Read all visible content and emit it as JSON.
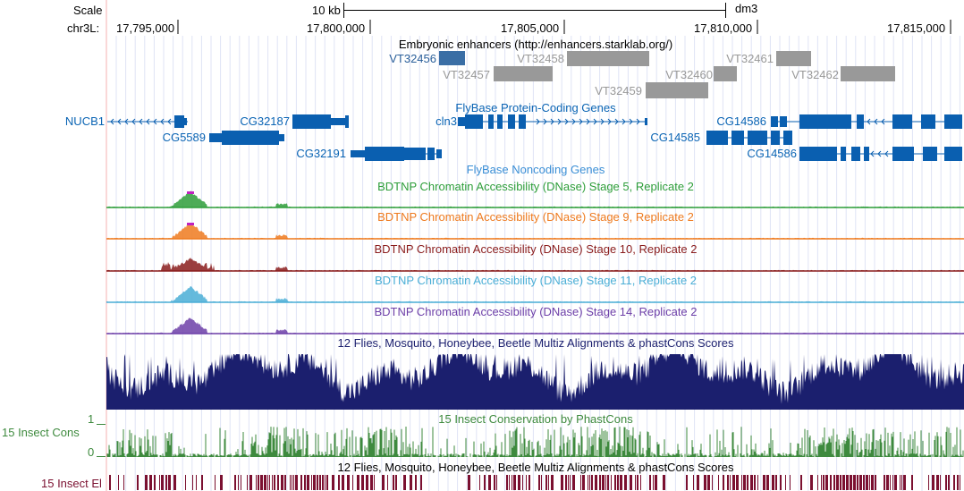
{
  "ruler": {
    "scale_label": "Scale",
    "scale_bar_label": "10 kb",
    "assembly": "dm3",
    "chrom_label": "chr3L:",
    "ticks": [
      "17,795,000",
      "17,800,000",
      "17,805,000",
      "17,810,000",
      "17,815,000"
    ]
  },
  "enhancers": {
    "title": "Embryonic enhancers (http://enhancers.starklab.org/)",
    "items": [
      "VT32456",
      "VT32457",
      "VT32458",
      "VT32459",
      "VT32460",
      "VT32461",
      "VT32462"
    ]
  },
  "protein_genes": {
    "title": "FlyBase Protein-Coding Genes",
    "genes": [
      "NUCB1",
      "CG5589",
      "CG32187",
      "CG32191",
      "cln3",
      "CG14586",
      "CG14585",
      "CG14586"
    ]
  },
  "noncoding": {
    "title": "FlyBase Noncoding Genes"
  },
  "dnase_tracks": [
    {
      "title": "BDTNP Chromatin Accessibility (DNase) Stage 5, Replicate 2",
      "color": "#2e9e3a"
    },
    {
      "title": "BDTNP Chromatin Accessibility (DNase) Stage 9, Replicate 2",
      "color": "#ee7a1e"
    },
    {
      "title": "BDTNP Chromatin Accessibility (DNase) Stage 10, Replicate 2",
      "color": "#8a1c1c"
    },
    {
      "title": "BDTNP Chromatin Accessibility (DNase) Stage 11, Replicate 2",
      "color": "#4aaed6"
    },
    {
      "title": "BDTNP Chromatin Accessibility (DNase) Stage 14, Replicate 2",
      "color": "#6d3fa8"
    }
  ],
  "multiz": {
    "title": "12 Flies, Mosquito, Honeybee, Beetle Multiz Alignments & phastCons Scores",
    "color": "#1b1f6e"
  },
  "cons": {
    "title": "15 Insect Conservation by PhastCons",
    "left_label": "15 Insect Cons",
    "axis_max": "1",
    "axis_min": "0",
    "color": "#3e8a3e"
  },
  "elements": {
    "title": "12 Flies, Mosquito, Honeybee, Beetle Multiz Alignments & phastCons Scores",
    "left_label": "15 Insect El",
    "color": "#7b1030"
  }
}
